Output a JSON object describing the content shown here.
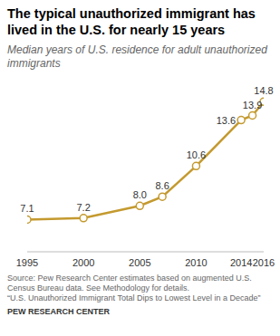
{
  "chart_data": {
    "type": "line",
    "title": "The typical unauthorized immigrant has lived in the U.S. for nearly 15 years",
    "subtitle": "Median years of U.S. residence for adult unauthorized immigrants",
    "x": [
      1995,
      2000,
      2005,
      2007,
      2010,
      2014,
      2015,
      2016
    ],
    "values": [
      7.1,
      7.2,
      8.0,
      8.6,
      10.6,
      13.6,
      13.9,
      14.8
    ],
    "value_labels": [
      "7.1",
      "7.2",
      "8.0",
      "8.6",
      "10.6",
      "13.6",
      "13.9",
      "14.8"
    ],
    "color": "#c49a2f",
    "marker": "circle",
    "data_labels": true,
    "xlim": [
      1995,
      2016
    ],
    "xticks": [
      1995,
      2000,
      2005,
      2010,
      2014,
      2016
    ],
    "ylim": [
      5,
      16
    ],
    "tick_labels": "x",
    "grid": false,
    "source": [
      "Source: Pew Research Center estimates based on augmented U.S. Census Bureau data. See Methodology for details.",
      "“U.S. Unauthorized Immigrant Total Dips to Lowest Level in a Decade”"
    ],
    "credit": "PEW RESEARCH CENTER"
  }
}
